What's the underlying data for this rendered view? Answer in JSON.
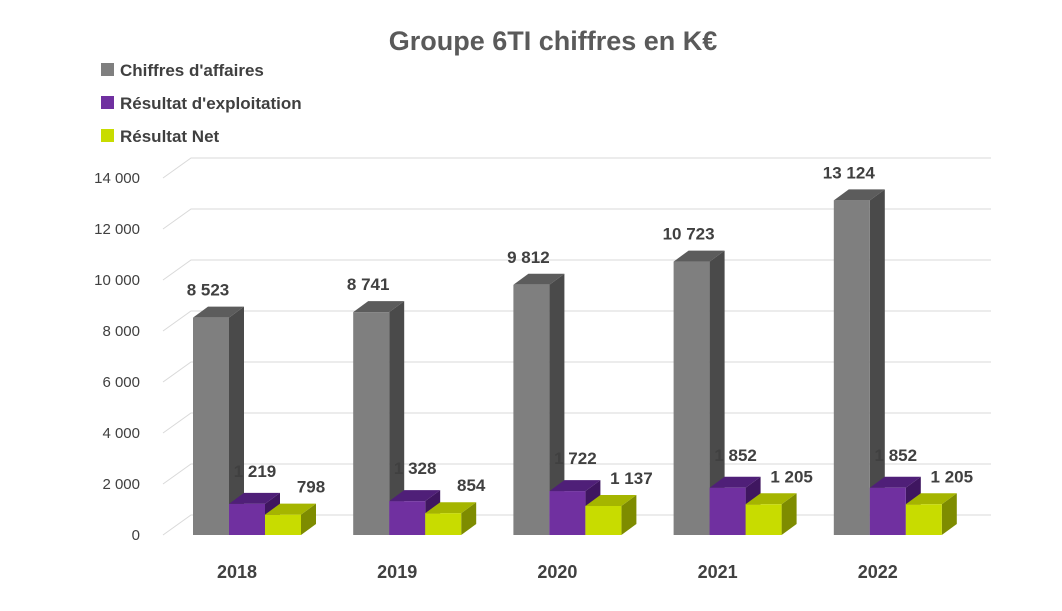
{
  "chart_data": {
    "type": "bar",
    "title": "Groupe 6TI chiffres en K€",
    "categories": [
      "2018",
      "2019",
      "2020",
      "2021",
      "2022"
    ],
    "series": [
      {
        "name": "Chiffres d'affaires",
        "values": [
          8523,
          8741,
          9812,
          10723,
          13124
        ],
        "labels": [
          "8 523",
          "8 741",
          "9 812",
          "10 723",
          "13 124"
        ],
        "color": "#7f7f7f",
        "side_color": "#4a4a4a",
        "top_color": "#5c5c5c"
      },
      {
        "name": "Résultat d'exploitation",
        "values": [
          1219,
          1328,
          1722,
          1852,
          1852
        ],
        "labels": [
          "1 219",
          "1 328",
          "1 722",
          "1 852",
          "1 852"
        ],
        "color": "#7030a0",
        "side_color": "#3f1660",
        "top_color": "#4f1f78"
      },
      {
        "name": "Résultat Net",
        "values": [
          798,
          854,
          1137,
          1205,
          1205
        ],
        "labels": [
          "798",
          "854",
          "1 137",
          "1 205",
          "1 205"
        ],
        "color": "#c8dc00",
        "side_color": "#7e8c00",
        "top_color": "#a5b500"
      }
    ],
    "ylim": [
      0,
      14000
    ],
    "yticks": [
      0,
      2000,
      4000,
      6000,
      8000,
      10000,
      12000,
      14000
    ],
    "ytick_labels": [
      "0",
      "2 000",
      "4 000",
      "6 000",
      "8 000",
      "10 000",
      "12 000",
      "14 000"
    ],
    "grid": true,
    "legend_position": "top-left",
    "style": "3d-clustered-column"
  }
}
